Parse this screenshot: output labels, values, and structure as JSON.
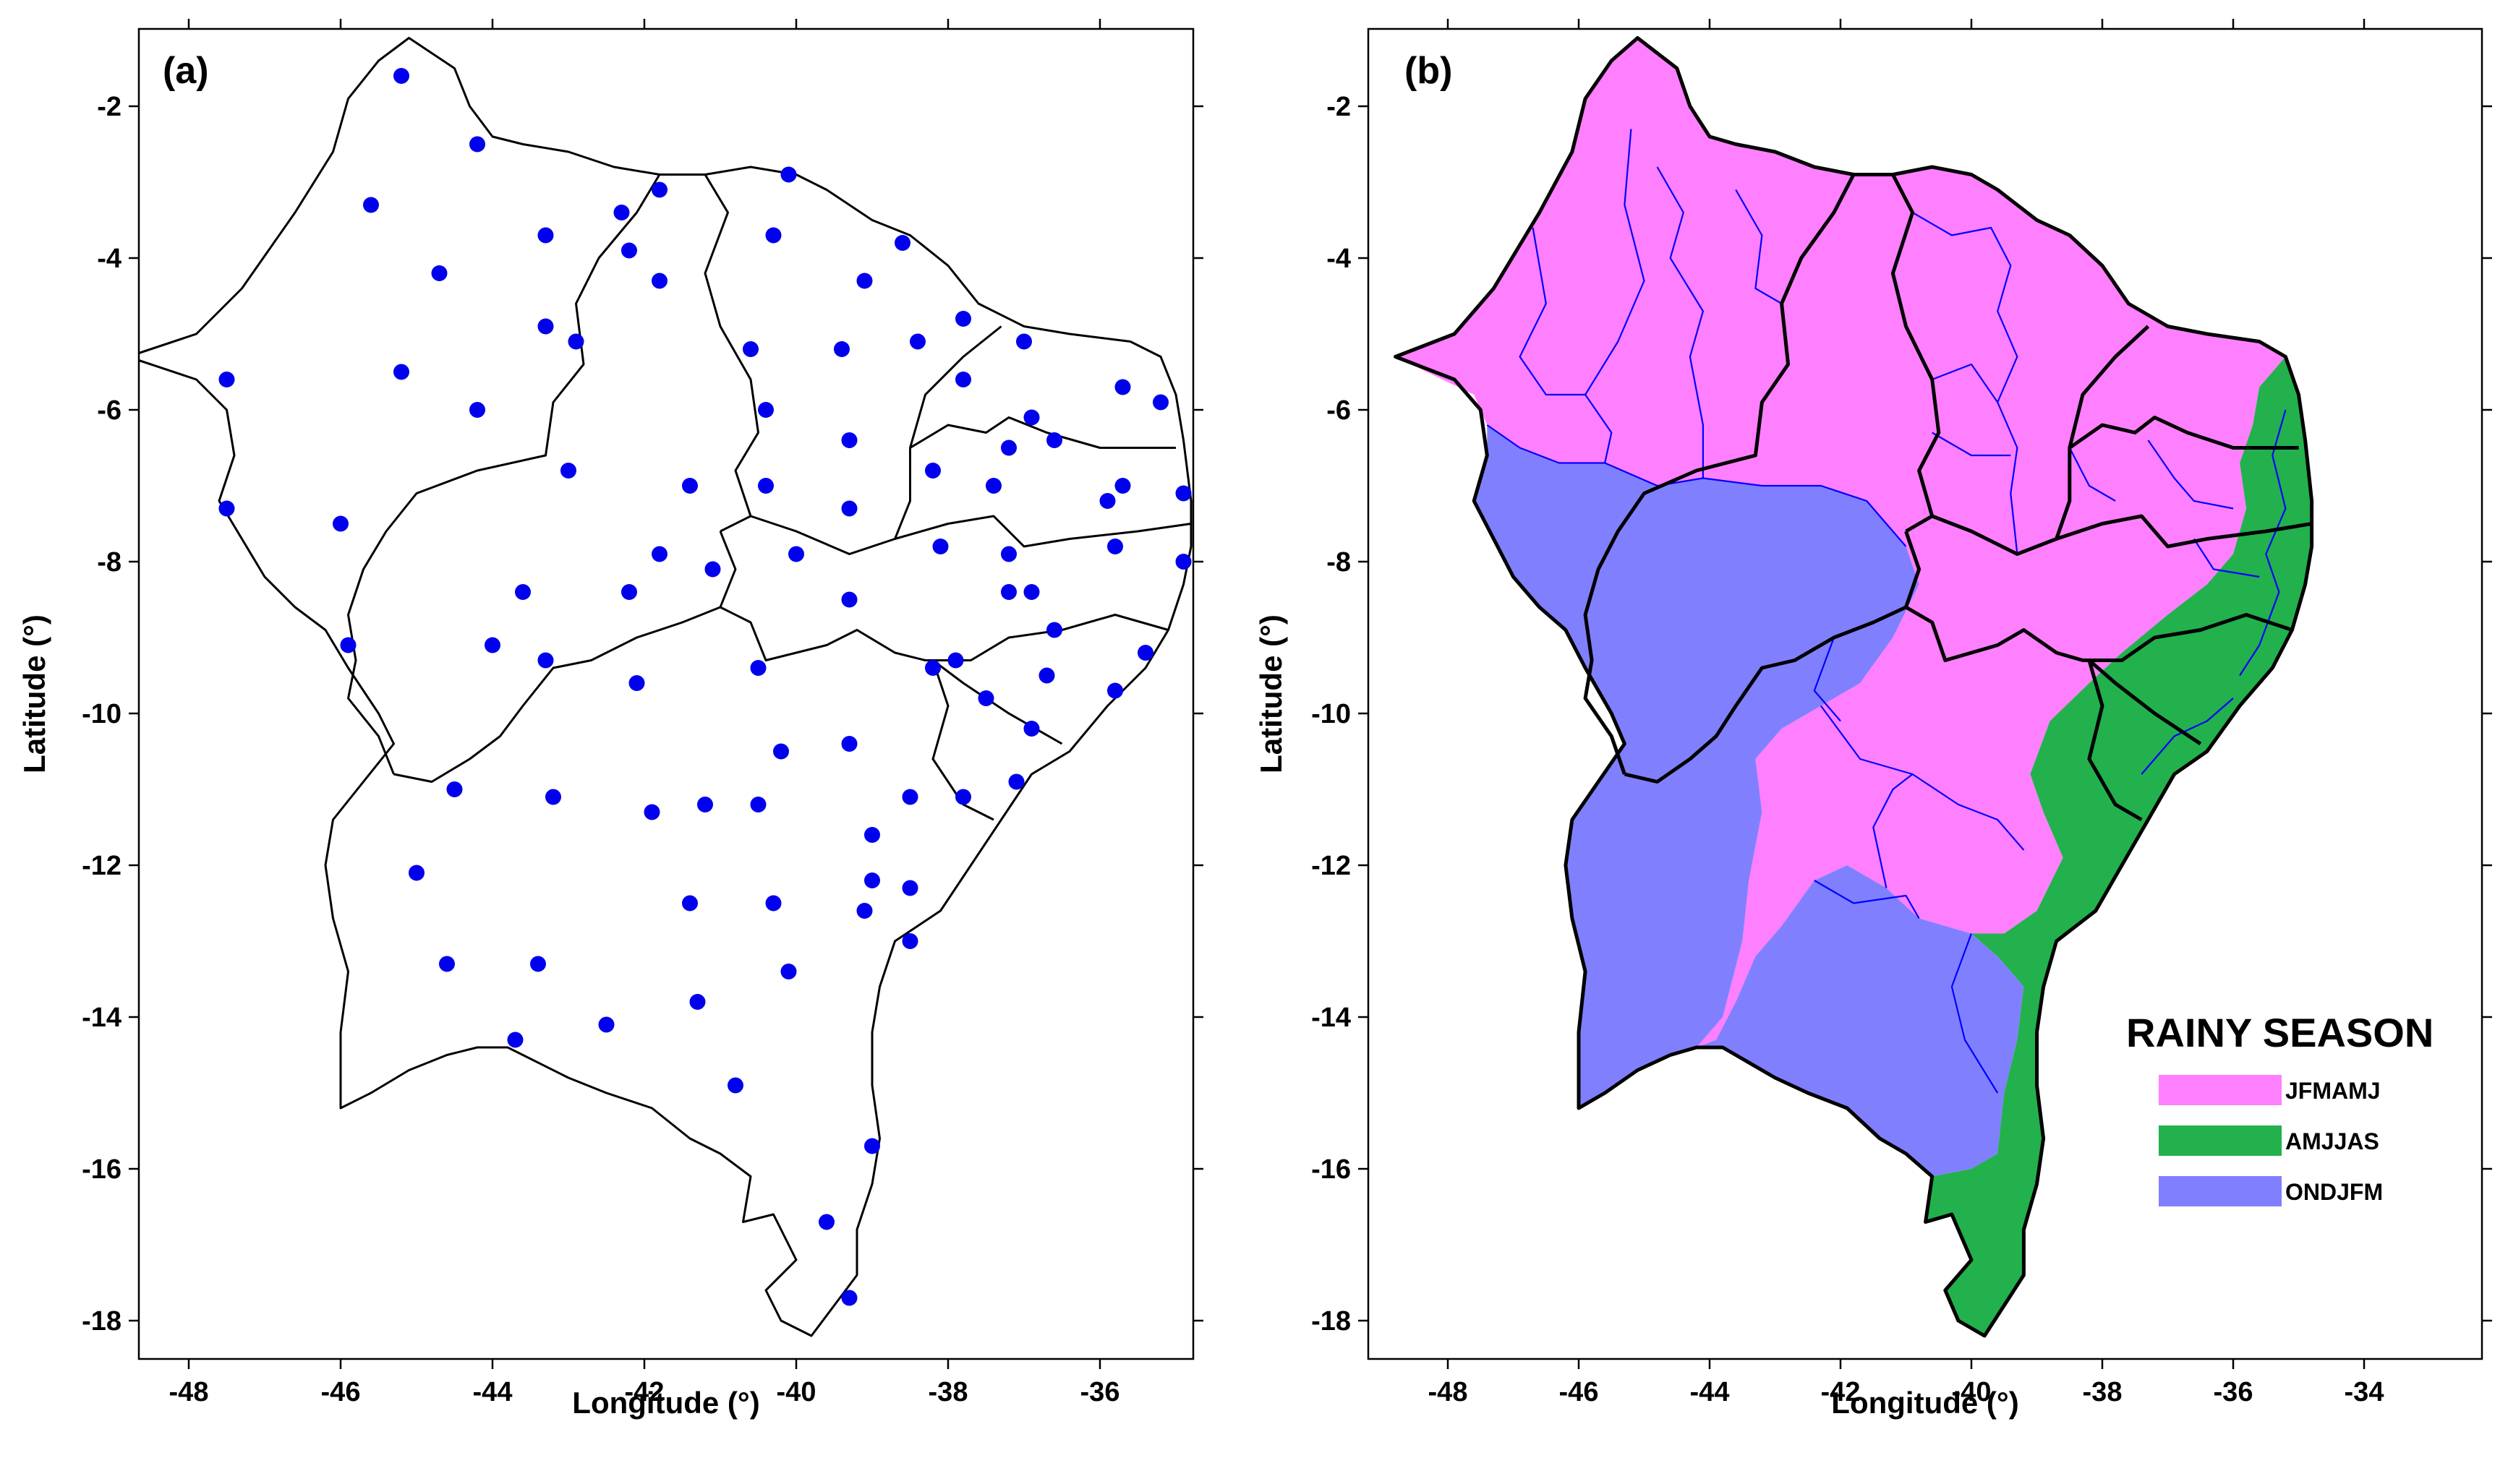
{
  "panels": [
    {
      "label": "(a)",
      "xlabel": "Longitude (°)",
      "ylabel": "Latitude (°)",
      "xticks": [
        -48,
        -46,
        -44,
        -42,
        -40,
        -38,
        -36
      ],
      "yticks": [
        -2,
        -4,
        -6,
        -8,
        -10,
        -12,
        -14,
        -16,
        -18
      ],
      "xlim": [
        -48.8,
        -34.6
      ],
      "ylim": [
        -18.4,
        -1.0
      ]
    },
    {
      "label": "(b)",
      "xlabel": "Longitude (°)",
      "ylabel": "Latitude (°)",
      "xticks": [
        -48,
        -46,
        -44,
        -42,
        -40,
        -38,
        -36,
        -34
      ],
      "yticks": [
        -2,
        -4,
        -6,
        -8,
        -10,
        -12,
        -14,
        -16,
        -18
      ],
      "xlim": [
        -48.8,
        -34.0
      ],
      "ylim": [
        -18.4,
        -1.0
      ]
    }
  ],
  "legend": {
    "title": "RAINY SEASON",
    "items": [
      {
        "label": "JFMAMJ",
        "color": "#ff80ff"
      },
      {
        "label": "AMJJAS",
        "color": "#22b14c"
      },
      {
        "label": "ONDJFM",
        "color": "#8080ff"
      }
    ]
  },
  "stations": [
    [
      -45.2,
      -1.6
    ],
    [
      -44.2,
      -2.5
    ],
    [
      -45.6,
      -3.3
    ],
    [
      -44.7,
      -4.2
    ],
    [
      -45.2,
      -5.5
    ],
    [
      -44.2,
      -6.0
    ],
    [
      -47.5,
      -5.6
    ],
    [
      -47.5,
      -7.3
    ],
    [
      -46.0,
      -7.5
    ],
    [
      -45.9,
      -9.1
    ],
    [
      -43.3,
      -3.7
    ],
    [
      -43.3,
      -4.9
    ],
    [
      -42.9,
      -5.1
    ],
    [
      -42.3,
      -3.4
    ],
    [
      -42.2,
      -3.9
    ],
    [
      -41.8,
      -3.1
    ],
    [
      -41.8,
      -4.3
    ],
    [
      -43.0,
      -6.8
    ],
    [
      -41.4,
      -7.0
    ],
    [
      -41.8,
      -7.9
    ],
    [
      -41.1,
      -8.1
    ],
    [
      -42.2,
      -8.4
    ],
    [
      -43.6,
      -8.4
    ],
    [
      -44.0,
      -9.1
    ],
    [
      -43.3,
      -9.3
    ],
    [
      -42.1,
      -9.6
    ],
    [
      -40.1,
      -2.9
    ],
    [
      -40.3,
      -3.7
    ],
    [
      -39.1,
      -4.3
    ],
    [
      -40.6,
      -5.2
    ],
    [
      -39.4,
      -5.2
    ],
    [
      -38.4,
      -5.1
    ],
    [
      -38.6,
      -3.8
    ],
    [
      -37.8,
      -4.8
    ],
    [
      -37.0,
      -5.1
    ],
    [
      -40.4,
      -6.0
    ],
    [
      -39.3,
      -6.4
    ],
    [
      -40.4,
      -7.0
    ],
    [
      -40.0,
      -7.9
    ],
    [
      -39.3,
      -7.3
    ],
    [
      -37.8,
      -5.6
    ],
    [
      -38.2,
      -6.8
    ],
    [
      -37.4,
      -7.0
    ],
    [
      -37.2,
      -6.5
    ],
    [
      -36.9,
      -6.1
    ],
    [
      -36.6,
      -6.4
    ],
    [
      -35.7,
      -5.7
    ],
    [
      -35.2,
      -5.9
    ],
    [
      -35.7,
      -7.0
    ],
    [
      -35.9,
      -7.2
    ],
    [
      -34.9,
      -7.1
    ],
    [
      -37.2,
      -7.9
    ],
    [
      -38.1,
      -7.8
    ],
    [
      -35.8,
      -7.8
    ],
    [
      -34.9,
      -8.0
    ],
    [
      -37.2,
      -8.4
    ],
    [
      -36.9,
      -8.4
    ],
    [
      -36.6,
      -8.9
    ],
    [
      -39.3,
      -8.5
    ],
    [
      -40.5,
      -9.4
    ],
    [
      -38.2,
      -9.4
    ],
    [
      -37.9,
      -9.3
    ],
    [
      -37.5,
      -9.8
    ],
    [
      -36.7,
      -9.5
    ],
    [
      -35.4,
      -9.2
    ],
    [
      -35.8,
      -9.7
    ],
    [
      -36.9,
      -10.2
    ],
    [
      -40.2,
      -10.5
    ],
    [
      -39.3,
      -10.4
    ],
    [
      -38.5,
      -11.1
    ],
    [
      -37.8,
      -11.1
    ],
    [
      -37.1,
      -10.9
    ],
    [
      -44.5,
      -11.0
    ],
    [
      -43.2,
      -11.1
    ],
    [
      -41.9,
      -11.3
    ],
    [
      -41.2,
      -11.2
    ],
    [
      -40.5,
      -11.2
    ],
    [
      -39.0,
      -11.6
    ],
    [
      -45.0,
      -12.1
    ],
    [
      -41.4,
      -12.5
    ],
    [
      -40.3,
      -12.5
    ],
    [
      -39.0,
      -12.2
    ],
    [
      -38.5,
      -12.3
    ],
    [
      -39.1,
      -12.6
    ],
    [
      -44.6,
      -13.3
    ],
    [
      -43.4,
      -13.3
    ],
    [
      -40.1,
      -13.4
    ],
    [
      -38.5,
      -13.0
    ],
    [
      -42.5,
      -14.1
    ],
    [
      -41.3,
      -13.8
    ],
    [
      -43.7,
      -14.3
    ],
    [
      -40.8,
      -14.9
    ],
    [
      -39.0,
      -15.7
    ],
    [
      -39.6,
      -16.7
    ],
    [
      -39.3,
      -17.7
    ]
  ],
  "chart_data": {
    "type": "scatter",
    "title": "",
    "xlabel": "Longitude (°)",
    "ylabel": "Latitude (°)",
    "series": [
      {
        "name": "",
        "x": [],
        "y": []
      }
    ]
  }
}
